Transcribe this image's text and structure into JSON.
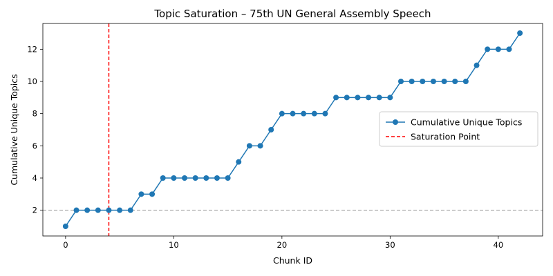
{
  "chart_data": {
    "type": "line",
    "title": "Topic Saturation – 75th UN General Assembly Speech",
    "xlabel": "Chunk ID",
    "ylabel": "Cumulative Unique Topics",
    "xlim": [
      -2.1,
      44.1
    ],
    "ylim": [
      0.4,
      13.6
    ],
    "xticks": [
      0,
      10,
      20,
      30,
      40
    ],
    "yticks": [
      2,
      4,
      6,
      8,
      10,
      12
    ],
    "grid": false,
    "legend_position": "center-right",
    "series": [
      {
        "name": "Cumulative Unique Topics",
        "color": "#1f77b4",
        "marker": "circle",
        "x": [
          0,
          1,
          2,
          3,
          4,
          5,
          6,
          7,
          8,
          9,
          10,
          11,
          12,
          13,
          14,
          15,
          16,
          17,
          18,
          19,
          20,
          21,
          22,
          23,
          24,
          25,
          26,
          27,
          28,
          29,
          30,
          31,
          32,
          33,
          34,
          35,
          36,
          37,
          38,
          39,
          40,
          41,
          42
        ],
        "y": [
          1,
          2,
          2,
          2,
          2,
          2,
          2,
          3,
          3,
          4,
          4,
          4,
          4,
          4,
          4,
          4,
          5,
          6,
          6,
          7,
          8,
          8,
          8,
          8,
          8,
          9,
          9,
          9,
          9,
          9,
          9,
          10,
          10,
          10,
          10,
          10,
          10,
          10,
          11,
          12,
          12,
          12,
          13
        ]
      }
    ],
    "annotations": [
      {
        "name": "Saturation Point",
        "kind": "vline",
        "x": 4,
        "color": "#ff0000",
        "style": "dashed"
      },
      {
        "kind": "hline",
        "y": 2,
        "color": "#b0b0b0",
        "style": "dashed"
      }
    ]
  }
}
